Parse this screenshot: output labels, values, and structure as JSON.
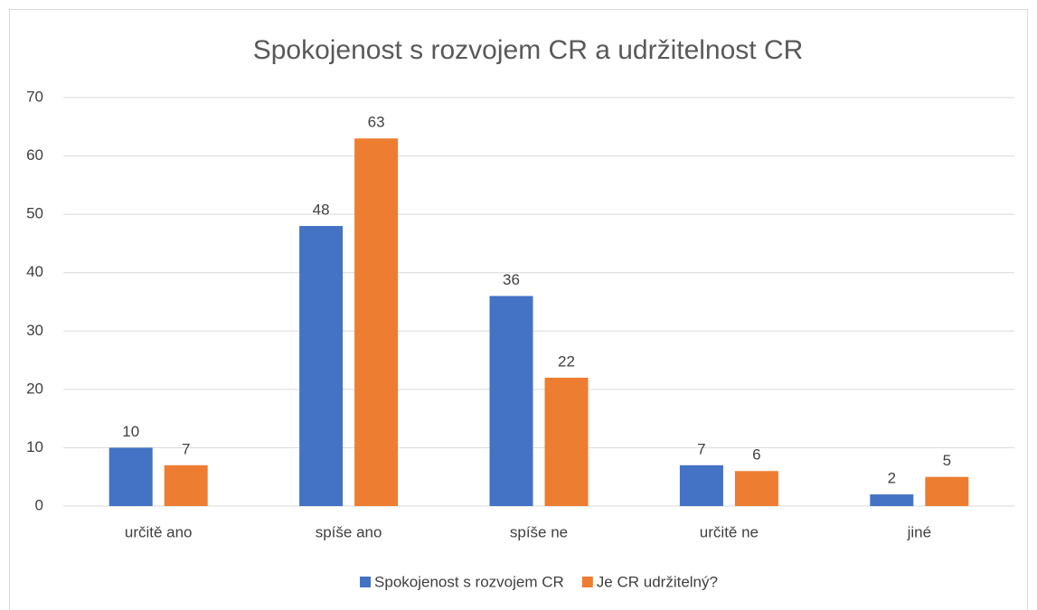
{
  "chart_data": {
    "type": "bar",
    "title": "Spokojenost s rozvojem CR a udržitelnost CR",
    "categories": [
      "určitě ano",
      "spíše ano",
      "spíše ne",
      "určitě ne",
      "jiné"
    ],
    "series": [
      {
        "name": "Spokojenost s rozvojem CR",
        "color": "#4472c4",
        "values": [
          10,
          48,
          36,
          7,
          2
        ]
      },
      {
        "name": "Je CR udržitelný?",
        "color": "#ed7d31",
        "values": [
          7,
          63,
          22,
          6,
          5
        ]
      }
    ],
    "ylim": [
      0,
      70
    ],
    "yticks": [
      0,
      10,
      20,
      30,
      40,
      50,
      60,
      70
    ],
    "grid": true,
    "legend": "bottom"
  }
}
